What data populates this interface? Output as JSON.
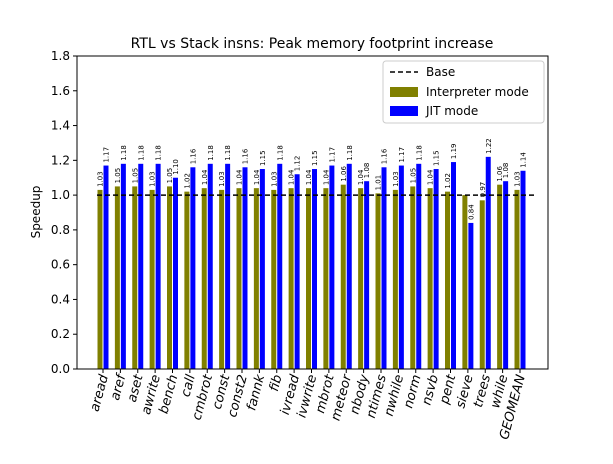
{
  "chart_data": {
    "type": "bar",
    "title": "RTL vs Stack insns: Peak memory footprint increase",
    "xlabel": "",
    "ylabel": "Speedup",
    "ylim": [
      0.0,
      1.8
    ],
    "yticks": [
      "0.0",
      "0.2",
      "0.4",
      "0.6",
      "0.8",
      "1.0",
      "1.2",
      "1.4",
      "1.6",
      "1.8"
    ],
    "grid": false,
    "legend_position": "top-right",
    "baseline": {
      "name": "Base",
      "value": 1.0,
      "style": "dashed",
      "color": "#000000"
    },
    "categories": [
      "aread",
      "aref",
      "aset",
      "awrite",
      "bench",
      "call",
      "cmbrot",
      "const",
      "const2",
      "fannk",
      "fib",
      "ivread",
      "ivwrite",
      "mbrot",
      "meteor",
      "nbody",
      "ntimes",
      "nwhile",
      "norm",
      "nsvb",
      "pent",
      "sieve",
      "trees",
      "while",
      "GEOMEAN"
    ],
    "series": [
      {
        "name": "Interpreter mode",
        "color": "#808000",
        "values": [
          1.03,
          1.05,
          1.05,
          1.03,
          1.05,
          1.02,
          1.04,
          1.03,
          1.04,
          1.04,
          1.03,
          1.04,
          1.04,
          1.04,
          1.06,
          1.04,
          1.01,
          1.03,
          1.05,
          1.04,
          1.02,
          1.0,
          0.97,
          1.06,
          1.03
        ],
        "labels": [
          "1.03",
          "1.05",
          "1.05",
          "1.03",
          "1.05",
          "1.02",
          "1.04",
          "1.03",
          "1.04",
          "1.04",
          "1.03",
          "1.04",
          "1.04",
          "1.04",
          "1.06",
          "1.04",
          "1.01",
          "1.03",
          "1.05",
          "1.04",
          "1.02",
          "",
          "0.97",
          "1.06",
          "1.03"
        ]
      },
      {
        "name": "JIT mode",
        "color": "#0000ff",
        "values": [
          1.17,
          1.18,
          1.18,
          1.18,
          1.1,
          1.16,
          1.18,
          1.18,
          1.16,
          1.15,
          1.18,
          1.12,
          1.15,
          1.17,
          1.18,
          1.08,
          1.16,
          1.17,
          1.18,
          1.15,
          1.19,
          0.84,
          1.22,
          1.08,
          1.14
        ],
        "labels": [
          "1.17",
          "1.18",
          "1.18",
          "1.18",
          "1.10",
          "1.16",
          "1.18",
          "1.18",
          "1.16",
          "1.15",
          "1.18",
          "1.12",
          "1.15",
          "1.17",
          "1.18",
          "1.08",
          "1.16",
          "1.17",
          "1.18",
          "1.15",
          "1.19",
          "0.84",
          "1.22",
          "1.08",
          "1.14"
        ]
      }
    ]
  }
}
